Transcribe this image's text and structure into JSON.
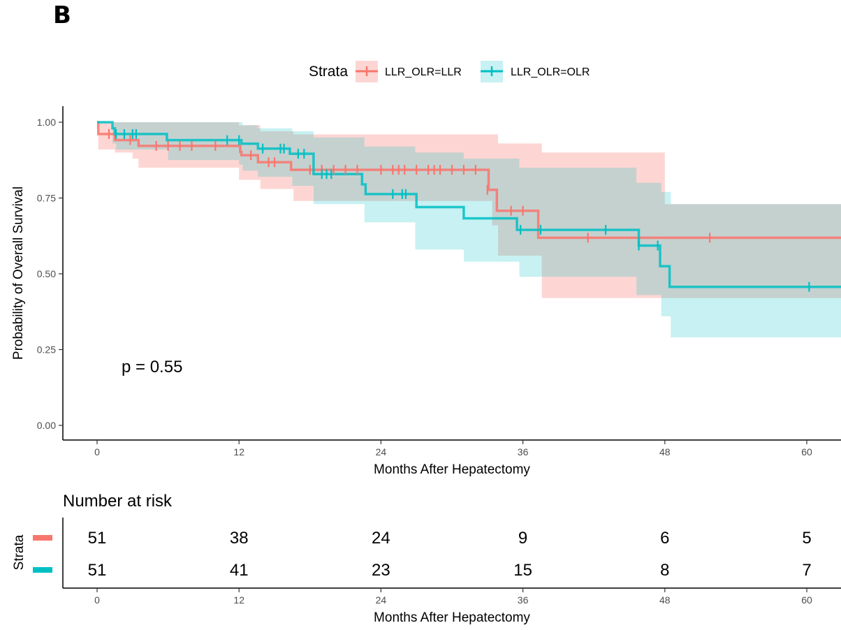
{
  "panel_label": "B",
  "chart_data": {
    "type": "line",
    "subtype": "kaplan-meier",
    "title": "",
    "xlabel": "Months After Hepatectomy",
    "ylabel": "Probability of Overall Survival",
    "xlim": [
      0,
      60
    ],
    "ylim": [
      0,
      1
    ],
    "xticks": [
      0,
      12,
      24,
      36,
      48,
      60
    ],
    "yticks": [
      0.0,
      0.25,
      0.5,
      0.75,
      1.0
    ],
    "ytick_labels": [
      "0.00",
      "0.25",
      "0.50",
      "0.75",
      "1.00"
    ],
    "xtick_labels": [
      "0",
      "12",
      "24",
      "36",
      "48",
      "60"
    ],
    "grid": false,
    "legend": {
      "title": "Strata",
      "position": "top"
    },
    "annotation": "p = 0.55",
    "series": [
      {
        "name": "LLR_OLR=LLR",
        "color": "#F8766D",
        "steps": [
          [
            0,
            1.0
          ],
          [
            0.1,
            0.961
          ],
          [
            1.3,
            0.961
          ],
          [
            1.5,
            0.941
          ],
          [
            3.5,
            0.922
          ],
          [
            12.1,
            0.902
          ],
          [
            12.2,
            0.891
          ],
          [
            13.6,
            0.868
          ],
          [
            16.4,
            0.843
          ],
          [
            33.1,
            0.777
          ],
          [
            33.8,
            0.708
          ],
          [
            37.3,
            0.619
          ],
          [
            63,
            0.619
          ]
        ],
        "censor": [
          [
            1.0,
            0.961
          ],
          [
            2.8,
            0.941
          ],
          [
            5.0,
            0.922
          ],
          [
            6.0,
            0.922
          ],
          [
            7.0,
            0.922
          ],
          [
            8.0,
            0.922
          ],
          [
            10.0,
            0.922
          ],
          [
            13.0,
            0.891
          ],
          [
            14.5,
            0.868
          ],
          [
            15.0,
            0.868
          ],
          [
            18.0,
            0.843
          ],
          [
            19.0,
            0.843
          ],
          [
            20.0,
            0.843
          ],
          [
            21.0,
            0.843
          ],
          [
            22.0,
            0.843
          ],
          [
            24.0,
            0.843
          ],
          [
            25.0,
            0.843
          ],
          [
            25.5,
            0.843
          ],
          [
            26.0,
            0.843
          ],
          [
            27.0,
            0.843
          ],
          [
            28.0,
            0.843
          ],
          [
            28.5,
            0.843
          ],
          [
            29.0,
            0.843
          ],
          [
            30.0,
            0.843
          ],
          [
            31.0,
            0.843
          ],
          [
            32.0,
            0.843
          ],
          [
            33.0,
            0.777
          ],
          [
            35.0,
            0.708
          ],
          [
            36.0,
            0.708
          ],
          [
            41.5,
            0.619
          ],
          [
            51.8,
            0.619
          ]
        ],
        "ci_steps": [
          [
            0,
            1.0,
            1.0
          ],
          [
            0.1,
            0.91,
            1.0
          ],
          [
            1.5,
            0.9,
            1.0
          ],
          [
            3.0,
            0.88,
            1.0
          ],
          [
            3.5,
            0.85,
            1.0
          ],
          [
            12.0,
            0.81,
            0.99
          ],
          [
            13.8,
            0.78,
            0.97
          ],
          [
            16.6,
            0.74,
            0.96
          ],
          [
            19.0,
            0.74,
            0.96
          ],
          [
            22.5,
            0.74,
            0.96
          ],
          [
            33.4,
            0.66,
            0.96
          ],
          [
            33.9,
            0.56,
            0.93
          ],
          [
            37.6,
            0.42,
            0.9
          ],
          [
            48.0,
            0.42,
            0.73
          ],
          [
            63,
            0.42,
            0.73
          ]
        ]
      },
      {
        "name": "LLR_OLR=OLR",
        "color": "#00BFC4",
        "steps": [
          [
            0,
            1.0
          ],
          [
            1.3,
            0.98
          ],
          [
            1.5,
            0.961
          ],
          [
            5.9,
            0.941
          ],
          [
            12.2,
            0.929
          ],
          [
            13.6,
            0.913
          ],
          [
            16.3,
            0.896
          ],
          [
            18.3,
            0.829
          ],
          [
            22.4,
            0.795
          ],
          [
            22.7,
            0.763
          ],
          [
            27.0,
            0.72
          ],
          [
            31.0,
            0.683
          ],
          [
            35.5,
            0.645
          ],
          [
            45.8,
            0.593
          ],
          [
            47.6,
            0.525
          ],
          [
            48.4,
            0.457
          ],
          [
            63,
            0.457
          ]
        ],
        "censor": [
          [
            1.6,
            0.961
          ],
          [
            2.3,
            0.961
          ],
          [
            3.0,
            0.961
          ],
          [
            3.3,
            0.961
          ],
          [
            11.0,
            0.941
          ],
          [
            12.0,
            0.941
          ],
          [
            14.0,
            0.913
          ],
          [
            15.5,
            0.913
          ],
          [
            15.8,
            0.913
          ],
          [
            17.0,
            0.896
          ],
          [
            17.5,
            0.896
          ],
          [
            19.0,
            0.829
          ],
          [
            19.4,
            0.829
          ],
          [
            19.8,
            0.829
          ],
          [
            25.0,
            0.763
          ],
          [
            25.8,
            0.763
          ],
          [
            26.1,
            0.763
          ],
          [
            35.8,
            0.645
          ],
          [
            37.5,
            0.645
          ],
          [
            43.0,
            0.645
          ],
          [
            45.8,
            0.593
          ],
          [
            47.4,
            0.593
          ],
          [
            60.2,
            0.457
          ]
        ],
        "ci_steps": [
          [
            0,
            1.0,
            1.0
          ],
          [
            1.3,
            0.93,
            1.0
          ],
          [
            1.6,
            0.91,
            1.0
          ],
          [
            6.0,
            0.875,
            1.0
          ],
          [
            12.0,
            0.86,
            1.0
          ],
          [
            12.3,
            0.84,
            0.99
          ],
          [
            13.6,
            0.82,
            0.98
          ],
          [
            16.5,
            0.79,
            0.97
          ],
          [
            18.3,
            0.73,
            0.95
          ],
          [
            22.6,
            0.67,
            0.92
          ],
          [
            26.9,
            0.58,
            0.9
          ],
          [
            31.0,
            0.54,
            0.88
          ],
          [
            33.9,
            0.54,
            0.88
          ],
          [
            35.7,
            0.49,
            0.85
          ],
          [
            45.6,
            0.43,
            0.8
          ],
          [
            47.7,
            0.36,
            0.77
          ],
          [
            48.5,
            0.29,
            0.73
          ],
          [
            63,
            0.29,
            0.73
          ]
        ]
      }
    ]
  },
  "risk_table": {
    "title": "Number at risk",
    "ylabel": "Strata",
    "xlabel": "Months After Hepatectomy",
    "times": [
      0,
      12,
      24,
      36,
      48,
      60
    ],
    "rows": [
      {
        "color": "#F8766D",
        "values": [
          51,
          38,
          24,
          9,
          6,
          5
        ]
      },
      {
        "color": "#00BFC4",
        "values": [
          51,
          41,
          23,
          15,
          8,
          7
        ]
      }
    ]
  }
}
